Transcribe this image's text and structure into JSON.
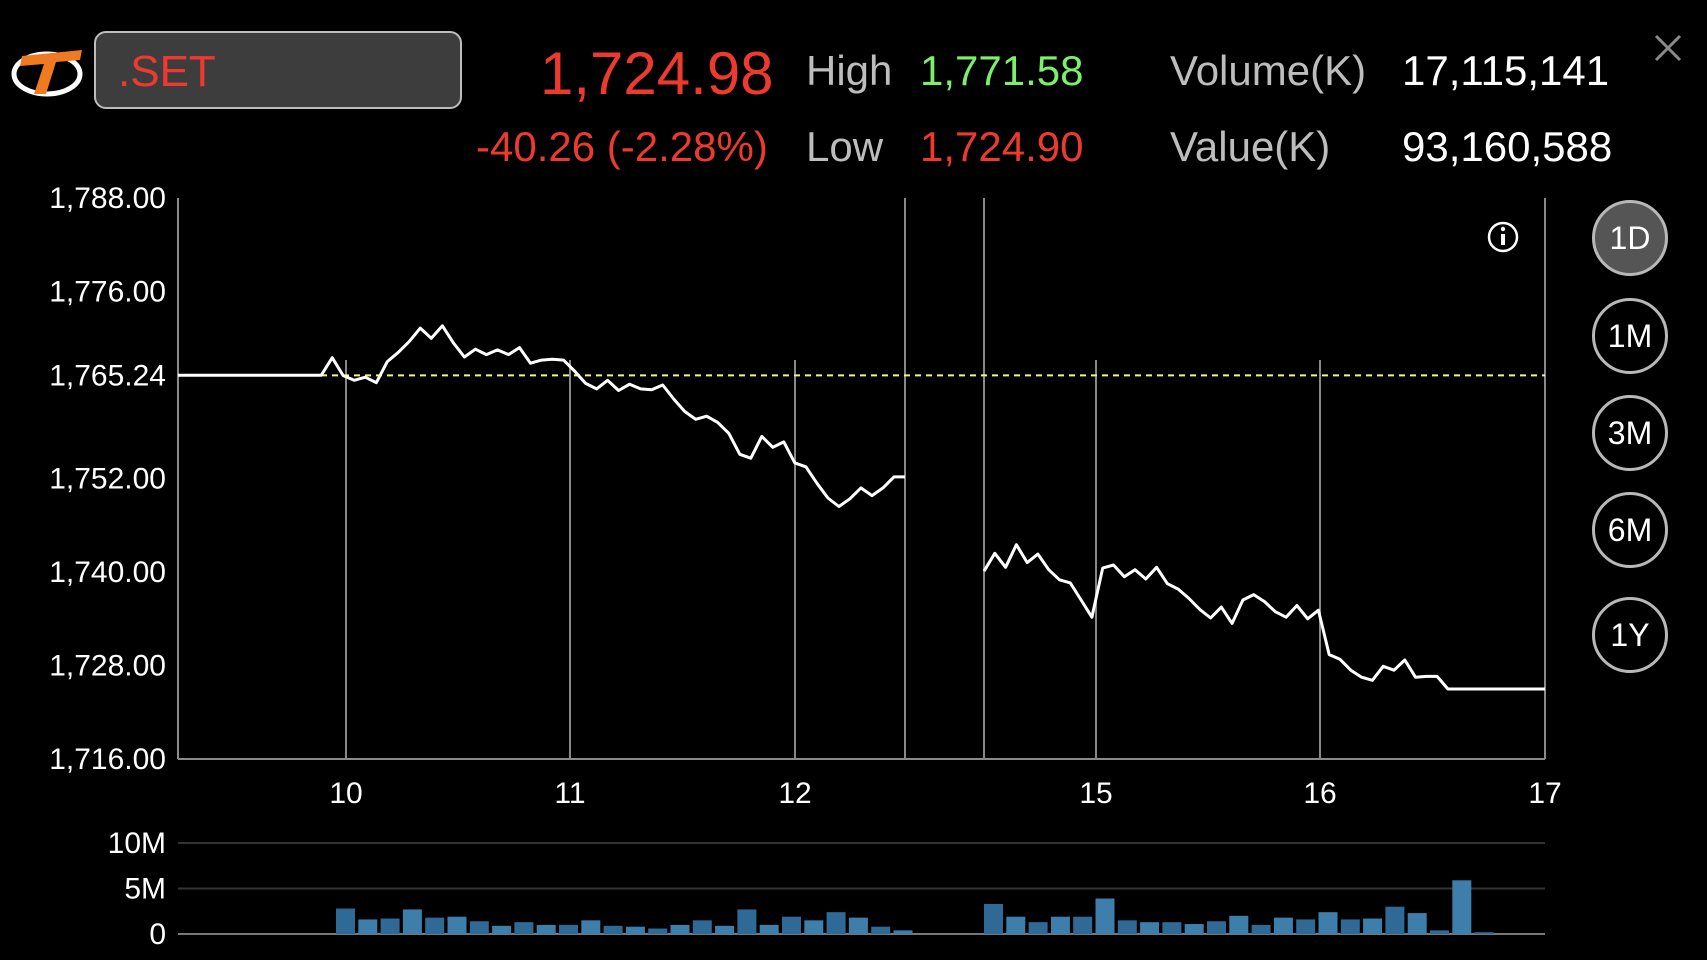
{
  "header": {
    "symbol": ".SET",
    "last": "1,724.98",
    "change": "-40.26 (-2.28%)",
    "high_label": "High",
    "high": "1,771.58",
    "low_label": "Low",
    "low": "1,724.90",
    "volume_label": "Volume(K)",
    "volume": "17,115,141",
    "value_label": "Value(K)",
    "value": "93,160,588"
  },
  "icons": {
    "logo": "brand-logo",
    "close": "close-icon",
    "info": "info-icon"
  },
  "ranges": [
    {
      "label": "1D",
      "active": true
    },
    {
      "label": "1M",
      "active": false
    },
    {
      "label": "3M",
      "active": false
    },
    {
      "label": "6M",
      "active": false
    },
    {
      "label": "1Y",
      "active": false
    }
  ],
  "colors": {
    "up": "#7cf06a",
    "down": "#ee3a2e",
    "reference": "#f6f28c",
    "volume": "#2f6a97"
  },
  "chart_data": {
    "type": "line",
    "x_tick_labels": [
      "10",
      "11",
      "12",
      "15",
      "16",
      "17"
    ],
    "y_tick_labels": [
      "1,788.00",
      "1,776.00",
      "1,765.24",
      "1,752.00",
      "1,740.00",
      "1,728.00",
      "1,716.00"
    ],
    "ylim": [
      1716,
      1788
    ],
    "reference_value": 1765.24,
    "reference_label": "1,765.24",
    "series": [
      {
        "values": [
          1765.24,
          1765.24,
          1765.24,
          1765.24,
          1765.24,
          1765.24,
          1765.24,
          1765.24,
          1765.24,
          1765.24,
          1765.24,
          1765.24,
          1765.24,
          1765.24,
          1767.5,
          1765.2,
          1764.6,
          1765,
          1764.3,
          1767,
          1768.2,
          1769.6,
          1771.3,
          1770,
          1771.6,
          1769.4,
          1767.6,
          1768.6,
          1767.9,
          1768.5,
          1767.9,
          1768.8,
          1766.8,
          1767.2,
          1767.3,
          1767.2,
          1765.8,
          1764.2,
          1763.5,
          1764.6,
          1763.3,
          1764.1,
          1763.5,
          1763.4,
          1764,
          1762.2,
          1760.6,
          1759.6,
          1760,
          1759.2,
          1757.8,
          1755.1,
          1754.6,
          1757.4,
          1756,
          1756.7,
          1754,
          1753.5,
          1751.4,
          1749.5,
          1748.4,
          1749.4,
          1750.8,
          1749.8,
          1750.8,
          1752.2,
          1752.2,
          1740.1,
          1742.4,
          1740.6,
          1743.5,
          1741.2,
          1742.3,
          1740.3,
          1739,
          1738.6,
          1736.4,
          1734.2,
          1740.5,
          1740.9,
          1739.4,
          1740.3,
          1739.1,
          1740.6,
          1738.5,
          1737.8,
          1736.6,
          1735.2,
          1734.1,
          1735.5,
          1733.4,
          1736.4,
          1737.1,
          1736.2,
          1734.9,
          1734.2,
          1735.7,
          1734,
          1735.1,
          1729.4,
          1728.8,
          1727.4,
          1726.5,
          1726.1,
          1727.9,
          1727.4,
          1728.7,
          1726.5,
          1726.6,
          1726.6,
          1724.98,
          1724.98,
          1724.98,
          1724.98,
          1724.98,
          1724.98,
          1724.98,
          1724.98,
          1724.98,
          1724.98
        ]
      }
    ],
    "volume": {
      "y_tick_labels": [
        "10M",
        "5M",
        "0"
      ],
      "ylim": [
        0,
        10
      ],
      "values": [
        2.8,
        1.6,
        1.7,
        2.7,
        1.8,
        1.9,
        1.4,
        0.9,
        1.3,
        1.0,
        1.0,
        1.5,
        0.9,
        0.8,
        0.6,
        1.0,
        1.5,
        0.9,
        2.7,
        1.0,
        1.9,
        1.5,
        2.4,
        1.8,
        0.8,
        0.4,
        3.3,
        1.9,
        1.3,
        1.9,
        1.9,
        3.9,
        1.5,
        1.3,
        1.3,
        1.1,
        1.4,
        2.0,
        1.0,
        1.8,
        1.6,
        2.4,
        1.6,
        1.7,
        3.0,
        2.3,
        0.4,
        5.9,
        0.2
      ]
    }
  }
}
